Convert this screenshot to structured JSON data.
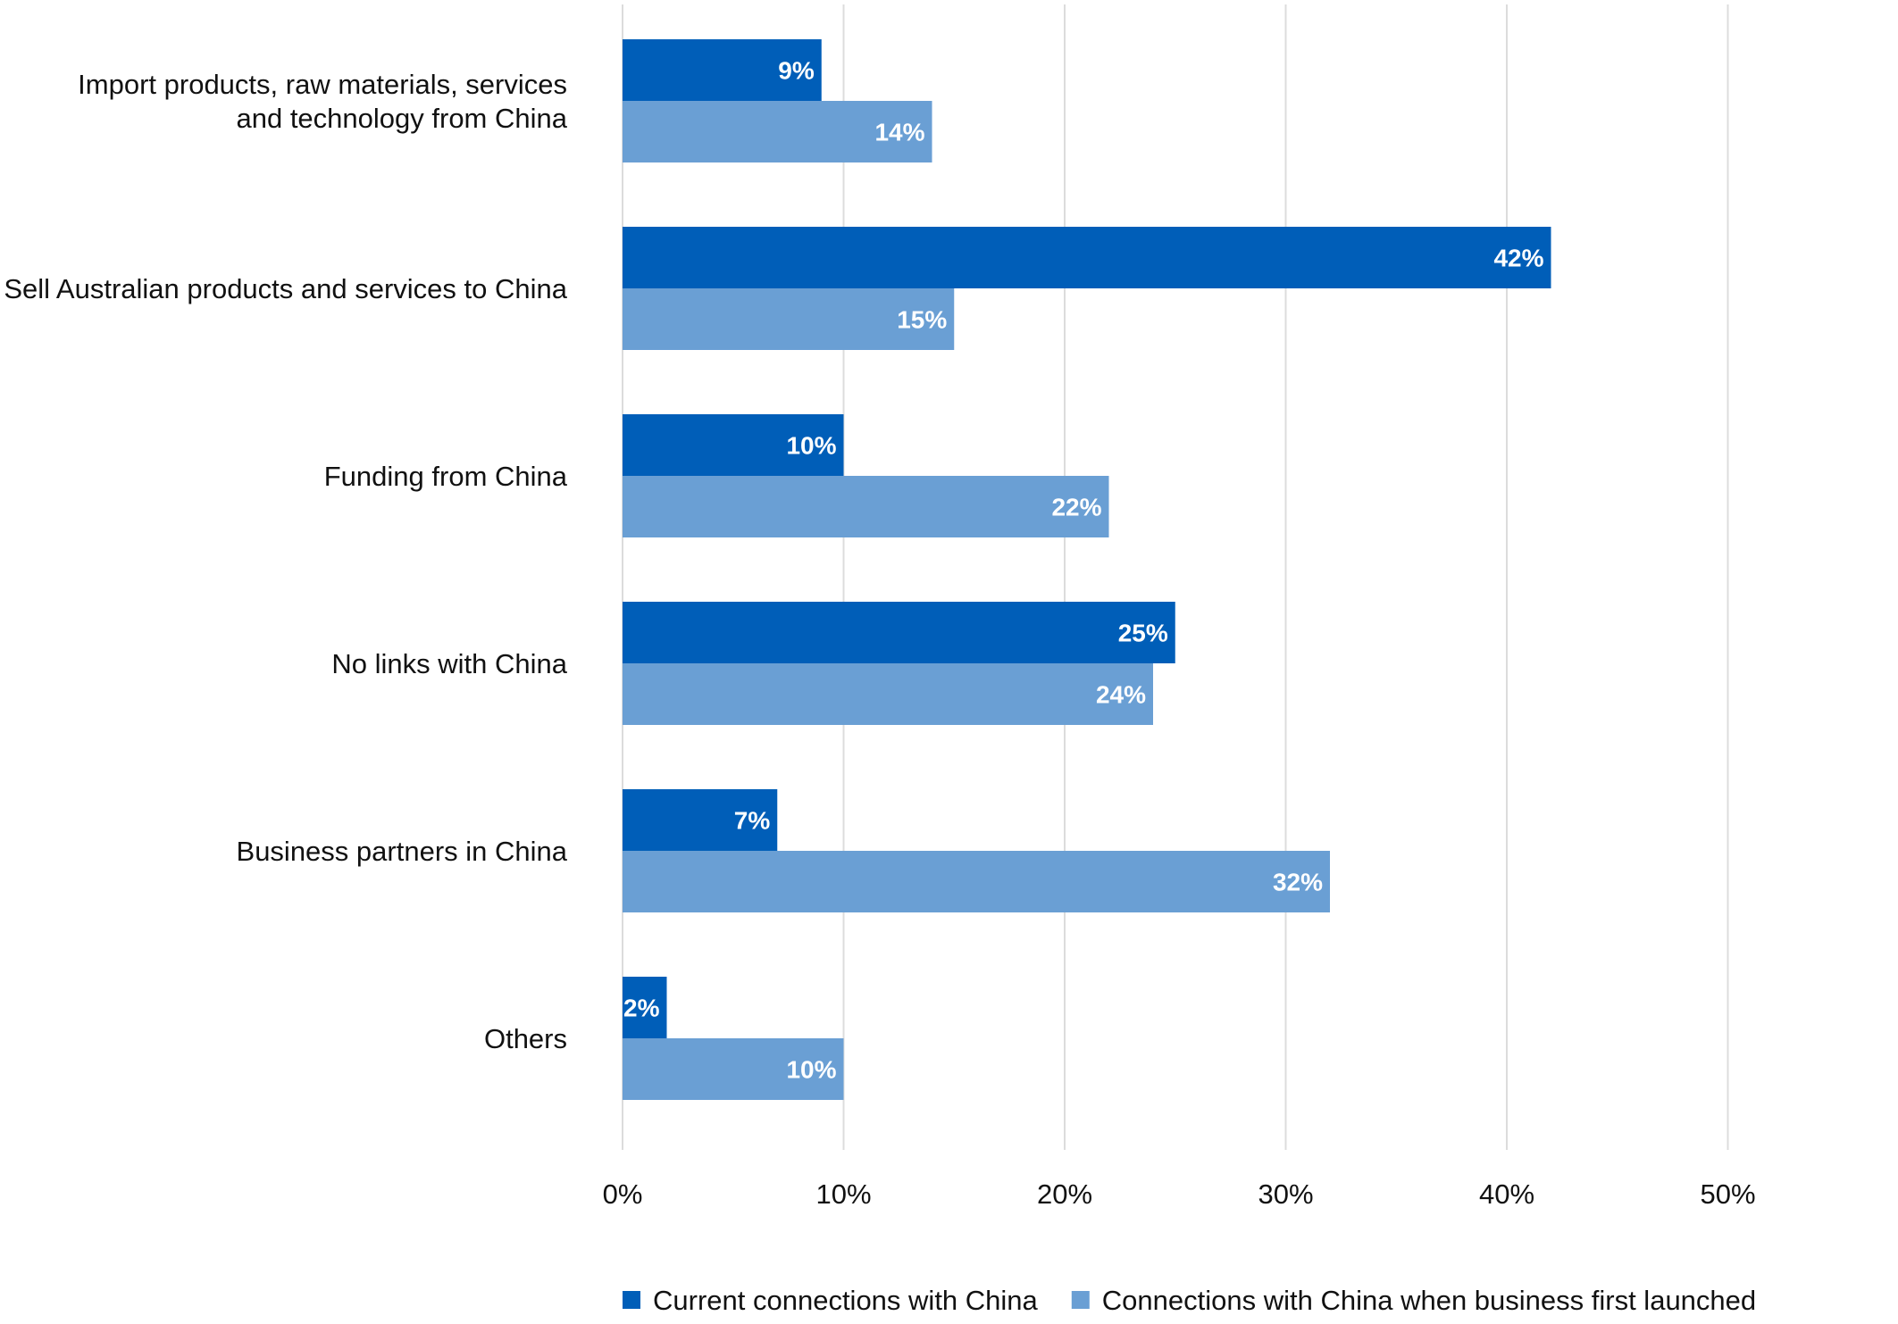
{
  "chart_data": {
    "type": "bar",
    "orientation": "horizontal",
    "categories": [
      [
        "Import products, raw materials, services",
        "and technology from China"
      ],
      [
        "Sell Australian products and services to China"
      ],
      [
        "Funding from China"
      ],
      [
        "No links with China"
      ],
      [
        "Business partners in China"
      ],
      [
        "Others"
      ]
    ],
    "series": [
      {
        "name": "Current connections with China",
        "color": "#005EB8",
        "values": [
          9,
          42,
          10,
          25,
          7,
          2
        ],
        "labels": [
          "9%",
          "42%",
          "10%",
          "25%",
          "7%",
          "2%"
        ]
      },
      {
        "name": "Connections with China when business first launched",
        "color": "#6A9FD4",
        "values": [
          14,
          15,
          22,
          24,
          32,
          10
        ],
        "labels": [
          "14%",
          "15%",
          "22%",
          "24%",
          "32%",
          "10%"
        ]
      }
    ],
    "xlim": [
      0,
      50
    ],
    "xticks": [
      0,
      10,
      20,
      30,
      40,
      50
    ],
    "xtick_labels": [
      "0%",
      "10%",
      "20%",
      "30%",
      "40%",
      "50%"
    ],
    "grid": "vertical",
    "legend_position": "bottom"
  }
}
